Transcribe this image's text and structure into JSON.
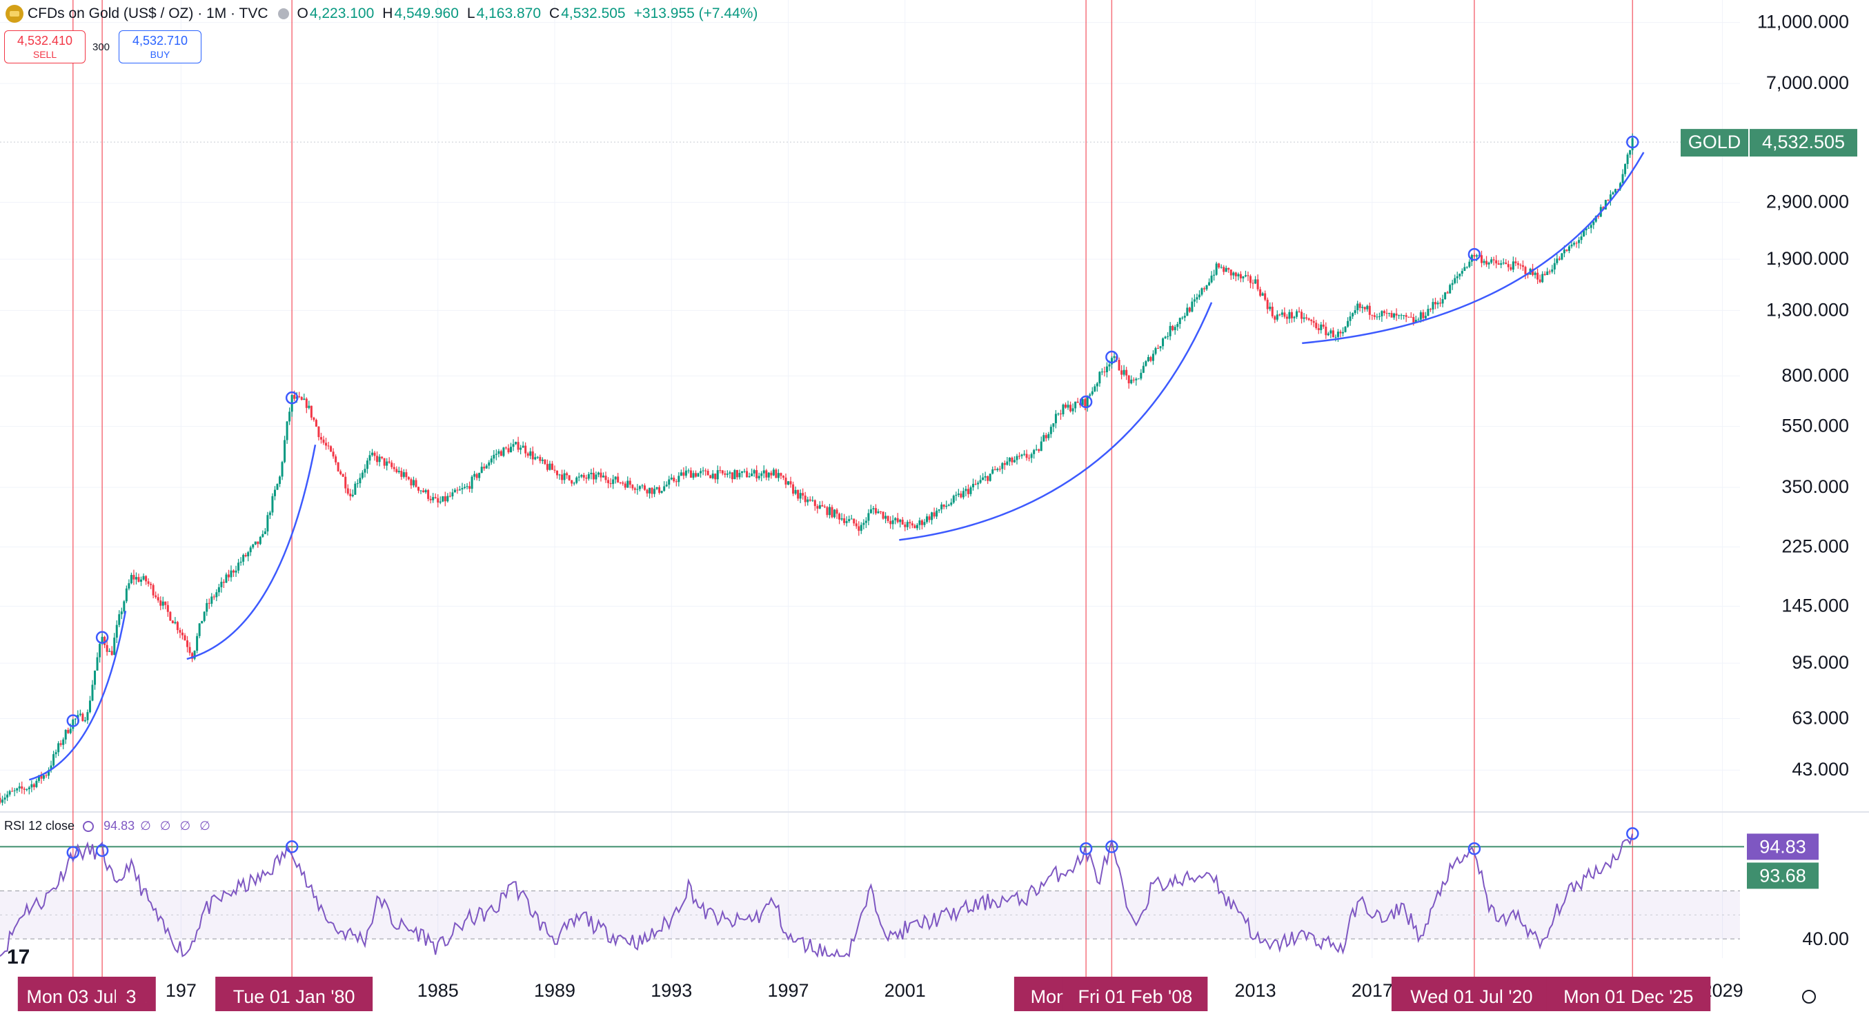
{
  "header": {
    "symbol": "CFDs on Gold (US$ / OZ) · 1M · TVC",
    "open_key": "O",
    "open": "4,223.100",
    "high_key": "H",
    "high": "4,549.960",
    "low_key": "L",
    "low": "4,163.870",
    "close_key": "C",
    "close": "4,532.505",
    "change": "+313.955 (+7.44%)"
  },
  "trade": {
    "sell_price": "4,532.410",
    "sell_label": "SELL",
    "spread": "300",
    "buy_price": "4,532.710",
    "buy_label": "BUY"
  },
  "price_tag": {
    "label": "GOLD",
    "value": "4,532.505"
  },
  "rsi": {
    "title": "RSI 12 close",
    "value": "94.83",
    "placeholders": "∅ ∅ ∅ ∅",
    "tag_value": "94.83",
    "tag_smoothing": "93.68",
    "level": "40.00"
  },
  "colors": {
    "up": "#089981",
    "down": "#f23645",
    "rsi": "#7e57c2",
    "arc": "#3d5afe",
    "crosshair": "#f23645",
    "date_tag": "#a7275d",
    "price_tag": "#3f8f6e"
  },
  "chart_data": {
    "type": "candlestick",
    "title": "CFDs on Gold (US$ / OZ) · 1M · TVC",
    "y_scale": "log",
    "y_ticks": [
      "11,000.000",
      "7,000.000",
      "2,900.000",
      "1,900.000",
      "1,300.000",
      "800.000",
      "550.000",
      "350.000",
      "225.000",
      "145.000",
      "95.000",
      "63.000",
      "43.000"
    ],
    "y_tick_values": [
      11000,
      7000,
      2900,
      1900,
      1300,
      800,
      550,
      350,
      225,
      145,
      95,
      63,
      43
    ],
    "x_ticks": [
      "197",
      "1985",
      "1989",
      "1993",
      "1997",
      "2001",
      "2013",
      "2017",
      "2029"
    ],
    "x_tick_years": [
      1976.2,
      1985,
      1989,
      1993,
      1997,
      2001,
      2013,
      2017,
      2029
    ],
    "date_tags": [
      "Mon 03 Jul '72",
      "3",
      "Tue 01 Jan '80",
      "Mon",
      "Fri 01 Feb '08",
      "Wed 01 Jul '20",
      "Mon 01 Dec '25"
    ],
    "date_tag_years": [
      1972.5,
      1974.3,
      1980.0,
      2007.1,
      2008.08,
      2020.5,
      2025.92
    ],
    "vertical_marker_years": [
      1972.5,
      1973.5,
      1980.0,
      2007.2,
      2008.08,
      2020.5,
      2025.92
    ],
    "price_keypoints": [
      [
        1970.0,
        35
      ],
      [
        1971.0,
        38
      ],
      [
        1971.6,
        42
      ],
      [
        1972.5,
        62
      ],
      [
        1973.0,
        65
      ],
      [
        1973.5,
        115
      ],
      [
        1973.8,
        100
      ],
      [
        1974.5,
        180
      ],
      [
        1975.0,
        175
      ],
      [
        1975.7,
        140
      ],
      [
        1976.2,
        120
      ],
      [
        1976.6,
        100
      ],
      [
        1977.0,
        140
      ],
      [
        1978.0,
        190
      ],
      [
        1979.0,
        240
      ],
      [
        1979.6,
        380
      ],
      [
        1980.0,
        680
      ],
      [
        1980.5,
        650
      ],
      [
        1981.0,
        500
      ],
      [
        1981.5,
        420
      ],
      [
        1982.0,
        330
      ],
      [
        1982.7,
        440
      ],
      [
        1983.0,
        430
      ],
      [
        1984.0,
        370
      ],
      [
        1985.0,
        310
      ],
      [
        1986.0,
        350
      ],
      [
        1987.0,
        450
      ],
      [
        1987.8,
        480
      ],
      [
        1988.5,
        420
      ],
      [
        1989.5,
        370
      ],
      [
        1990.5,
        380
      ],
      [
        1991.5,
        360
      ],
      [
        1992.5,
        340
      ],
      [
        1993.5,
        390
      ],
      [
        1994.5,
        385
      ],
      [
        1995.5,
        385
      ],
      [
        1996.5,
        390
      ],
      [
        1997.5,
        320
      ],
      [
        1998.5,
        290
      ],
      [
        1999.5,
        260
      ],
      [
        1999.9,
        300
      ],
      [
        2000.5,
        275
      ],
      [
        2001.3,
        260
      ],
      [
        2002.5,
        310
      ],
      [
        2003.5,
        360
      ],
      [
        2004.5,
        420
      ],
      [
        2005.5,
        450
      ],
      [
        2006.3,
        620
      ],
      [
        2007.2,
        660
      ],
      [
        2008.08,
        920
      ],
      [
        2008.8,
        740
      ],
      [
        2009.5,
        950
      ],
      [
        2010.5,
        1250
      ],
      [
        2011.0,
        1400
      ],
      [
        2011.7,
        1800
      ],
      [
        2012.5,
        1650
      ],
      [
        2013.0,
        1600
      ],
      [
        2013.6,
        1250
      ],
      [
        2014.5,
        1250
      ],
      [
        2015.5,
        1100
      ],
      [
        2016.0,
        1080
      ],
      [
        2016.5,
        1330
      ],
      [
        2017.5,
        1250
      ],
      [
        2018.5,
        1200
      ],
      [
        2019.5,
        1450
      ],
      [
        2020.5,
        1970
      ],
      [
        2021.0,
        1850
      ],
      [
        2022.0,
        1800
      ],
      [
        2022.8,
        1650
      ],
      [
        2023.5,
        1950
      ],
      [
        2024.5,
        2400
      ],
      [
        2025.0,
        2900
      ],
      [
        2025.5,
        3350
      ],
      [
        2025.92,
        4532.505
      ]
    ],
    "rsi_keypoints": [
      [
        1970.0,
        30
      ],
      [
        1970.8,
        55
      ],
      [
        1971.5,
        60
      ],
      [
        1972.0,
        70
      ],
      [
        1972.5,
        85
      ],
      [
        1973.5,
        86
      ],
      [
        1974.0,
        65
      ],
      [
        1974.4,
        80
      ],
      [
        1975.0,
        62
      ],
      [
        1975.6,
        45
      ],
      [
        1976.4,
        32
      ],
      [
        1977.0,
        55
      ],
      [
        1978.0,
        65
      ],
      [
        1979.0,
        72
      ],
      [
        1980.0,
        88
      ],
      [
        1980.6,
        65
      ],
      [
        1981.5,
        45
      ],
      [
        1982.5,
        40
      ],
      [
        1983.0,
        62
      ],
      [
        1983.5,
        48
      ],
      [
        1984.5,
        42
      ],
      [
        1985.0,
        35
      ],
      [
        1986.0,
        50
      ],
      [
        1987.0,
        55
      ],
      [
        1987.5,
        70
      ],
      [
        1988.0,
        60
      ],
      [
        1988.5,
        48
      ],
      [
        1989.0,
        40
      ],
      [
        1990.0,
        52
      ],
      [
        1990.5,
        45
      ],
      [
        1991.0,
        42
      ],
      [
        1992.0,
        38
      ],
      [
        1993.0,
        50
      ],
      [
        1993.6,
        68
      ],
      [
        1994.0,
        55
      ],
      [
        1995.0,
        48
      ],
      [
        1996.0,
        52
      ],
      [
        1996.5,
        60
      ],
      [
        1997.0,
        40
      ],
      [
        1998.0,
        35
      ],
      [
        1998.6,
        30
      ],
      [
        1999.0,
        32
      ],
      [
        1999.5,
        50
      ],
      [
        1999.8,
        65
      ],
      [
        2000.5,
        40
      ],
      [
        2001.0,
        45
      ],
      [
        2002.0,
        50
      ],
      [
        2003.0,
        55
      ],
      [
        2004.0,
        60
      ],
      [
        2005.0,
        60
      ],
      [
        2006.0,
        72
      ],
      [
        2007.0,
        80
      ],
      [
        2007.2,
        87
      ],
      [
        2007.6,
        70
      ],
      [
        2008.08,
        88
      ],
      [
        2008.8,
        45
      ],
      [
        2009.5,
        68
      ],
      [
        2010.5,
        70
      ],
      [
        2011.5,
        75
      ],
      [
        2012.0,
        60
      ],
      [
        2012.5,
        55
      ],
      [
        2013.0,
        40
      ],
      [
        2013.5,
        35
      ],
      [
        2014.5,
        42
      ],
      [
        2015.5,
        38
      ],
      [
        2016.0,
        35
      ],
      [
        2016.5,
        60
      ],
      [
        2017.5,
        48
      ],
      [
        2018.0,
        58
      ],
      [
        2018.7,
        40
      ],
      [
        2019.5,
        72
      ],
      [
        2020.5,
        87
      ],
      [
        2021.0,
        55
      ],
      [
        2021.5,
        50
      ],
      [
        2022.0,
        52
      ],
      [
        2022.5,
        42
      ],
      [
        2022.8,
        35
      ],
      [
        2023.5,
        60
      ],
      [
        2024.5,
        75
      ],
      [
        2025.0,
        78
      ],
      [
        2025.6,
        88
      ],
      [
        2025.92,
        94.83
      ]
    ],
    "circle_markers_price": [
      [
        1972.5,
        62
      ],
      [
        1973.5,
        115
      ],
      [
        1980.0,
        680
      ],
      [
        2007.2,
        660
      ],
      [
        2008.08,
        920
      ],
      [
        2020.5,
        1970
      ],
      [
        2025.92,
        4532.505
      ]
    ],
    "circle_markers_rsi": [
      [
        1972.5,
        85
      ],
      [
        1973.5,
        86
      ],
      [
        1980.0,
        88
      ],
      [
        2007.2,
        87
      ],
      [
        2008.08,
        88
      ],
      [
        2020.5,
        87
      ],
      [
        2025.92,
        94.83
      ]
    ],
    "trend_arcs": [
      {
        "from": [
          1971.0,
          40
        ],
        "to": [
          1974.3,
          140
        ],
        "curve": "convex"
      },
      {
        "from": [
          1976.4,
          98
        ],
        "to": [
          1980.8,
          480
        ],
        "curve": "convex"
      },
      {
        "from": [
          2000.8,
          237
        ],
        "to": [
          2011.5,
          1380
        ],
        "curve": "convex"
      },
      {
        "from": [
          2014.6,
          1020
        ],
        "to": [
          2026.3,
          4200
        ],
        "curve": "convex"
      }
    ],
    "rsi_band": [
      40,
      65
    ],
    "rsi_upper_line": 88,
    "rsi_range": [
      30,
      100
    ],
    "x_range": [
      1970.0,
      2029.6
    ],
    "y_range": [
      32,
      13000
    ]
  }
}
